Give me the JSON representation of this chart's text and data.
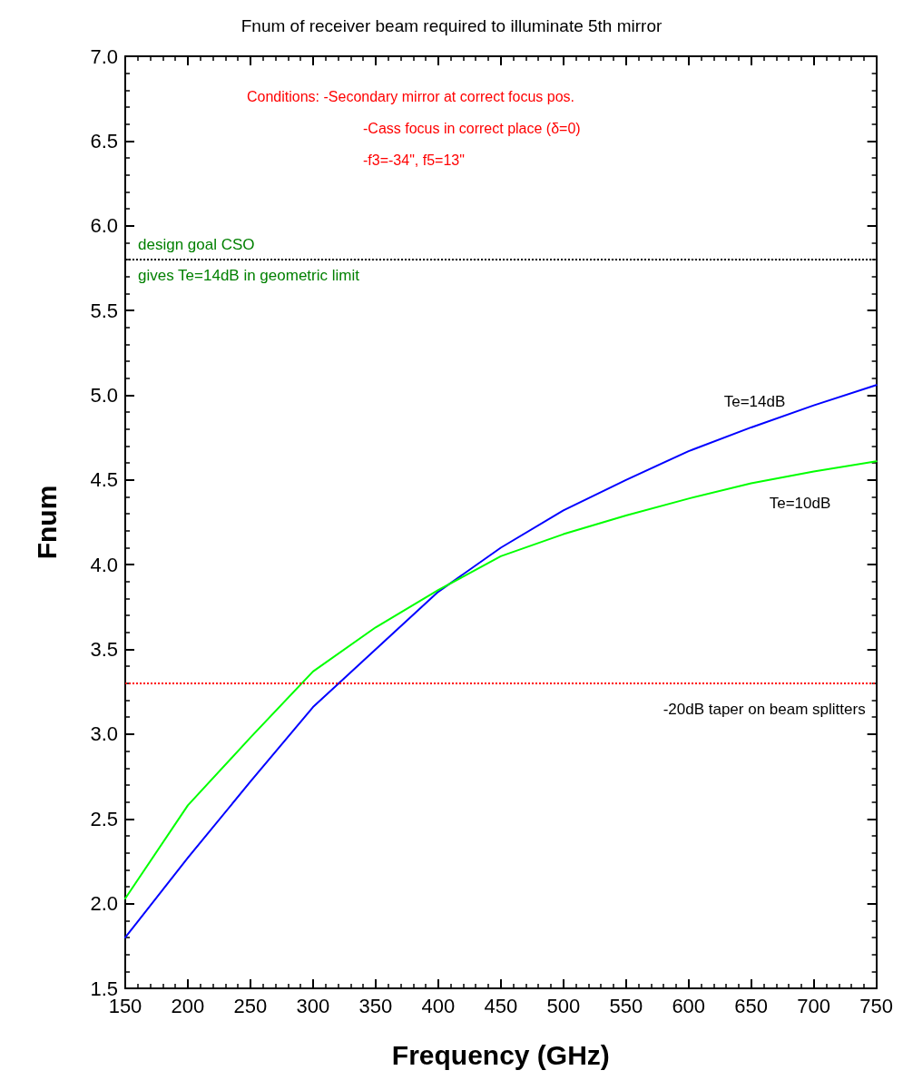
{
  "chart_data": {
    "type": "line",
    "title": "Fnum of receiver beam required to illuminate 5th mirror",
    "xlabel": "Frequency (GHz)",
    "ylabel": "Fnum",
    "x": [
      150,
      200,
      250,
      300,
      350,
      400,
      450,
      500,
      550,
      600,
      650,
      700,
      750
    ],
    "series": [
      {
        "name": "Te=14dB",
        "color": "#0000ff",
        "values": [
          1.8,
          2.27,
          2.72,
          3.16,
          3.5,
          3.84,
          4.1,
          4.32,
          4.5,
          4.67,
          4.81,
          4.94,
          5.06
        ]
      },
      {
        "name": "Te=10dB",
        "color": "#00ff00",
        "values": [
          2.03,
          2.58,
          2.98,
          3.37,
          3.63,
          3.85,
          4.05,
          4.18,
          4.29,
          4.39,
          4.48,
          4.55,
          4.61
        ]
      }
    ],
    "xlim": [
      150,
      750
    ],
    "xticks": [
      150,
      200,
      250,
      300,
      350,
      400,
      450,
      500,
      550,
      600,
      650,
      700,
      750
    ],
    "ylim": [
      1.5,
      7
    ],
    "yticks": [
      1.5,
      {
        "value": 2,
        "label": "2.0"
      },
      2.5,
      {
        "value": 3,
        "label": "3.0"
      },
      3.5,
      {
        "value": 4,
        "label": "4.0"
      },
      4.5,
      {
        "value": 5,
        "label": "5.0"
      },
      5.5,
      {
        "value": 6,
        "label": "6.0"
      },
      6.5,
      {
        "value": 7,
        "label": "7.0"
      }
    ],
    "ref_lines": [
      {
        "axis": "y",
        "value": 5.8,
        "color": "#000000",
        "line_style": "dotted"
      },
      {
        "axis": "y",
        "value": 3.3,
        "label": "-20dB taper on beam splitters",
        "color": "#ff0000",
        "line_style": "dotted"
      }
    ],
    "annotations": [
      "Conditions: -Secondary mirror at correct focus pos.\n-Cass focus in correct place (δ=0)\n-f3=-34\", f5=13\"",
      {
        "text": "design goal CSO\ngives Te=14dB in geometric limit",
        "x": 150,
        "y": 5.8
      }
    ],
    "grid": false,
    "legend": false,
    "marker": "none",
    "line_style": "solid"
  }
}
